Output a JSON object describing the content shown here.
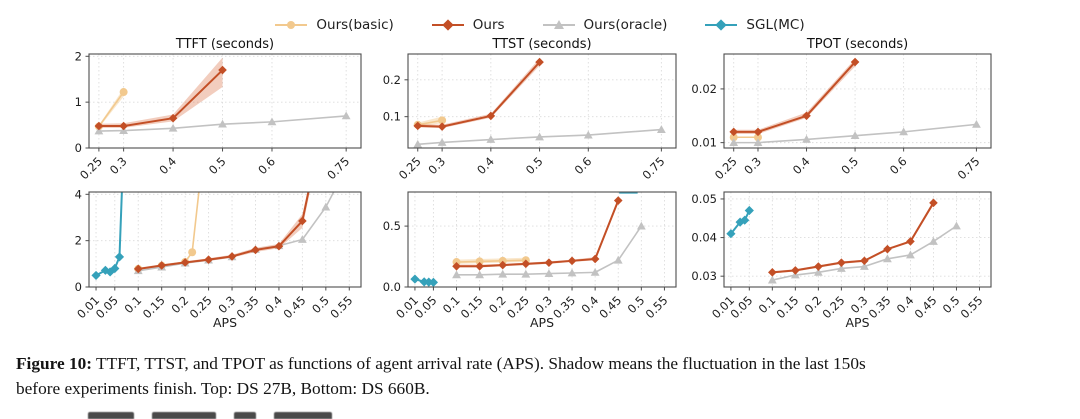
{
  "legend": {
    "items": [
      {
        "label": "Ours(basic)",
        "color": "#F2C98E",
        "marker": "circle"
      },
      {
        "label": "Ours",
        "color": "#C34F26",
        "marker": "diamond"
      },
      {
        "label": "Ours(oracle)",
        "color": "#C2C2C2",
        "marker": "triangle"
      },
      {
        "label": "SGL(MC)",
        "color": "#35A1BA",
        "marker": "diamond"
      }
    ]
  },
  "caption": {
    "tag": "Figure 10:",
    "line1": " TTFT, TTST, and TPOT as functions of agent arrival rate (APS). Shadow means the fluctuation in the last 150s",
    "line2": "before experiments finish. Top: DS 27B, Bottom: DS 660B."
  },
  "colors": {
    "basic": "#F2C98E",
    "ours": "#C34F26",
    "oracle": "#C2C2C2",
    "sgl": "#35A1BA",
    "ours_band": "#D96F45",
    "basic_band": "#F2C98E",
    "frame": "#4d4d4d",
    "grid": "#dcdcdc",
    "text": "#1f1f1f"
  },
  "chart_data": [
    {
      "type": "line",
      "title": "TTFT (seconds)",
      "model": "DS 27B",
      "grid": true,
      "xlim": [
        0.23,
        0.78
      ],
      "ylim": [
        0,
        2.05
      ],
      "xticks": [
        0.25,
        0.3,
        0.4,
        0.5,
        0.6,
        0.75
      ],
      "xtick_labels": [
        "0.25",
        "0.3",
        "0.4",
        "0.5",
        "0.6",
        "0.75"
      ],
      "yticks": [
        0,
        1,
        2
      ],
      "ytick_labels": [
        "0",
        "1",
        "2"
      ],
      "series": [
        {
          "name": "Ours(basic)",
          "key": "basic",
          "marker": "circle",
          "x": [
            0.25,
            0.3
          ],
          "y": [
            0.47,
            1.22
          ],
          "band_lo": [
            0.44,
            1.12
          ],
          "band_hi": [
            0.5,
            1.3
          ]
        },
        {
          "name": "Ours(oracle)",
          "key": "oracle",
          "marker": "triangle",
          "x": [
            0.25,
            0.3,
            0.4,
            0.5,
            0.6,
            0.75
          ],
          "y": [
            0.37,
            0.38,
            0.43,
            0.52,
            0.57,
            0.7
          ]
        },
        {
          "name": "Ours",
          "key": "ours",
          "marker": "diamond",
          "x": [
            0.25,
            0.3,
            0.4,
            0.5
          ],
          "y": [
            0.48,
            0.48,
            0.65,
            1.7
          ],
          "band_lo": [
            0.44,
            0.44,
            0.58,
            1.33
          ],
          "band_hi": [
            0.53,
            0.54,
            0.73,
            1.97
          ]
        }
      ]
    },
    {
      "type": "line",
      "title": "TTST (seconds)",
      "model": "DS 27B",
      "grid": true,
      "xlim": [
        0.23,
        0.78
      ],
      "ylim": [
        0.015,
        0.27
      ],
      "xticks": [
        0.25,
        0.3,
        0.4,
        0.5,
        0.6,
        0.75
      ],
      "xtick_labels": [
        "0.25",
        "0.3",
        "0.4",
        "0.5",
        "0.6",
        "0.75"
      ],
      "yticks": [
        0.1,
        0.2
      ],
      "ytick_labels": [
        "0.1",
        "0.2"
      ],
      "series": [
        {
          "name": "Ours(basic)",
          "key": "basic",
          "marker": "circle",
          "x": [
            0.25,
            0.3
          ],
          "y": [
            0.078,
            0.09
          ],
          "band_lo": [
            0.073,
            0.082
          ],
          "band_hi": [
            0.084,
            0.1
          ]
        },
        {
          "name": "Ours(oracle)",
          "key": "oracle",
          "marker": "triangle",
          "x": [
            0.25,
            0.3,
            0.4,
            0.5,
            0.6,
            0.75
          ],
          "y": [
            0.025,
            0.03,
            0.038,
            0.045,
            0.05,
            0.065
          ]
        },
        {
          "name": "Ours",
          "key": "ours",
          "marker": "diamond",
          "x": [
            0.25,
            0.3,
            0.4,
            0.5
          ],
          "y": [
            0.075,
            0.073,
            0.102,
            0.248
          ],
          "band_lo": [
            0.071,
            0.069,
            0.097,
            0.238
          ],
          "band_hi": [
            0.08,
            0.078,
            0.108,
            0.258
          ]
        }
      ]
    },
    {
      "type": "line",
      "title": "TPOT (seconds)",
      "model": "DS 27B",
      "grid": true,
      "xlim": [
        0.23,
        0.78
      ],
      "ylim": [
        0.009,
        0.0265
      ],
      "xticks": [
        0.25,
        0.3,
        0.4,
        0.5,
        0.6,
        0.75
      ],
      "xtick_labels": [
        "0.25",
        "0.3",
        "0.4",
        "0.5",
        "0.6",
        "0.75"
      ],
      "yticks": [
        0.01,
        0.02
      ],
      "ytick_labels": [
        "0.01",
        "0.02"
      ],
      "series": [
        {
          "name": "Ours(basic)",
          "key": "basic",
          "marker": "circle",
          "x": [
            0.25,
            0.3
          ],
          "y": [
            0.011,
            0.011
          ]
        },
        {
          "name": "Ours(oracle)",
          "key": "oracle",
          "marker": "triangle",
          "x": [
            0.25,
            0.3,
            0.4,
            0.5,
            0.6,
            0.75
          ],
          "y": [
            0.01,
            0.01,
            0.0106,
            0.0113,
            0.012,
            0.0134
          ]
        },
        {
          "name": "Ours",
          "key": "ours",
          "marker": "diamond",
          "x": [
            0.25,
            0.3,
            0.4,
            0.5
          ],
          "y": [
            0.012,
            0.012,
            0.015,
            0.025
          ],
          "band_lo": [
            0.0116,
            0.0116,
            0.0146,
            0.0242
          ],
          "band_hi": [
            0.0124,
            0.0124,
            0.0156,
            0.0256
          ]
        }
      ]
    },
    {
      "type": "line",
      "title": "",
      "model": "DS 660B",
      "xlabel": "APS",
      "grid": true,
      "xlim": [
        -0.005,
        0.575
      ],
      "ylim": [
        0,
        4.1
      ],
      "xticks": [
        0.01,
        0.05,
        0.1,
        0.15,
        0.2,
        0.25,
        0.3,
        0.35,
        0.4,
        0.45,
        0.5,
        0.55
      ],
      "xtick_labels": [
        "0.01",
        "0.05",
        "0.1",
        "0.15",
        "0.2",
        "0.25",
        "0.3",
        "0.35",
        "0.4",
        "0.45",
        "0.5",
        "0.55"
      ],
      "yticks": [
        0,
        2,
        4
      ],
      "ytick_labels": [
        "0",
        "2",
        "4"
      ],
      "series": [
        {
          "name": "SGL(MC)",
          "key": "sgl",
          "marker": "diamond",
          "x": [
            0.01,
            0.03,
            0.04,
            0.05,
            0.06,
            0.066
          ],
          "y": [
            0.5,
            0.72,
            0.65,
            0.8,
            1.3,
            4.6
          ]
        },
        {
          "name": "Ours(basic)",
          "key": "basic",
          "marker": "circle",
          "x": [
            0.1,
            0.15,
            0.2,
            0.215,
            0.232
          ],
          "y": [
            0.78,
            0.92,
            1.08,
            1.5,
            4.6
          ]
        },
        {
          "name": "Ours(oracle)",
          "key": "oracle",
          "marker": "triangle",
          "x": [
            0.1,
            0.15,
            0.2,
            0.25,
            0.3,
            0.35,
            0.4,
            0.45,
            0.5,
            0.527
          ],
          "y": [
            0.7,
            0.86,
            1.03,
            1.16,
            1.3,
            1.62,
            1.78,
            2.05,
            3.45,
            4.5
          ]
        },
        {
          "name": "Ours",
          "key": "ours",
          "marker": "diamond",
          "x": [
            0.1,
            0.15,
            0.2,
            0.25,
            0.3,
            0.35,
            0.4,
            0.45,
            0.468
          ],
          "y": [
            0.78,
            0.93,
            1.06,
            1.18,
            1.32,
            1.6,
            1.76,
            2.85,
            4.6
          ],
          "band_lo": [
            0.74,
            0.89,
            1.01,
            1.12,
            1.26,
            1.51,
            1.67,
            2.55,
            4.3
          ],
          "band_hi": [
            0.83,
            0.98,
            1.11,
            1.24,
            1.39,
            1.69,
            1.86,
            3.15,
            4.8
          ]
        }
      ]
    },
    {
      "type": "line",
      "title": "",
      "model": "DS 660B",
      "xlabel": "APS",
      "grid": true,
      "xlim": [
        -0.005,
        0.575
      ],
      "ylim": [
        0,
        0.78
      ],
      "xticks": [
        0.01,
        0.05,
        0.1,
        0.15,
        0.2,
        0.25,
        0.3,
        0.35,
        0.4,
        0.45,
        0.5,
        0.55
      ],
      "xtick_labels": [
        "0.01",
        "0.05",
        "0.1",
        "0.15",
        "0.2",
        "0.25",
        "0.3",
        "0.35",
        "0.4",
        "0.45",
        "0.5",
        "0.55"
      ],
      "yticks": [
        0.0,
        0.5
      ],
      "ytick_labels": [
        "0.0",
        "0.5"
      ],
      "series": [
        {
          "name": "SGL(MC)",
          "key": "sgl",
          "marker": "diamond",
          "x": [
            0.01,
            0.03,
            0.04,
            0.05
          ],
          "y": [
            0.065,
            0.042,
            0.04,
            0.038
          ]
        },
        {
          "name": "SGL(MC) off-scale",
          "key": "sgl",
          "marker": "none",
          "x": [
            0.452,
            0.492
          ],
          "y": [
            0.775,
            0.775
          ]
        },
        {
          "name": "Ours(basic)",
          "key": "basic",
          "marker": "circle",
          "x": [
            0.1,
            0.15,
            0.2,
            0.25
          ],
          "y": [
            0.205,
            0.21,
            0.215,
            0.22
          ],
          "band_lo": [
            0.19,
            0.195,
            0.2,
            0.205
          ],
          "band_hi": [
            0.225,
            0.23,
            0.235,
            0.24
          ]
        },
        {
          "name": "Ours(oracle)",
          "key": "oracle",
          "marker": "triangle",
          "x": [
            0.1,
            0.15,
            0.2,
            0.25,
            0.3,
            0.35,
            0.4,
            0.45,
            0.5
          ],
          "y": [
            0.1,
            0.1,
            0.105,
            0.105,
            0.11,
            0.115,
            0.12,
            0.22,
            0.5
          ]
        },
        {
          "name": "Ours",
          "key": "ours",
          "marker": "diamond",
          "x": [
            0.1,
            0.15,
            0.2,
            0.25,
            0.3,
            0.35,
            0.4,
            0.45
          ],
          "y": [
            0.17,
            0.17,
            0.18,
            0.19,
            0.2,
            0.215,
            0.23,
            0.71
          ],
          "band_lo": [
            0.16,
            0.16,
            0.17,
            0.18,
            0.19,
            0.205,
            0.22,
            0.69
          ],
          "band_hi": [
            0.185,
            0.185,
            0.19,
            0.2,
            0.21,
            0.225,
            0.245,
            0.73
          ]
        }
      ]
    },
    {
      "type": "line",
      "title": "",
      "model": "DS 660B",
      "xlabel": "APS",
      "grid": true,
      "xlim": [
        -0.005,
        0.575
      ],
      "ylim": [
        0.0272,
        0.0518
      ],
      "xticks": [
        0.01,
        0.05,
        0.1,
        0.15,
        0.2,
        0.25,
        0.3,
        0.35,
        0.4,
        0.45,
        0.5,
        0.55
      ],
      "xtick_labels": [
        "0.01",
        "0.05",
        "0.1",
        "0.15",
        "0.2",
        "0.25",
        "0.3",
        "0.35",
        "0.4",
        "0.45",
        "0.5",
        "0.55"
      ],
      "yticks": [
        0.03,
        0.04,
        0.05
      ],
      "ytick_labels": [
        "0.03",
        "0.04",
        "0.05"
      ],
      "series": [
        {
          "name": "SGL(MC)",
          "key": "sgl",
          "marker": "diamond",
          "x": [
            0.01,
            0.03,
            0.04,
            0.05
          ],
          "y": [
            0.041,
            0.044,
            0.0445,
            0.047
          ]
        },
        {
          "name": "Ours(oracle)",
          "key": "oracle",
          "marker": "triangle",
          "x": [
            0.1,
            0.15,
            0.2,
            0.25,
            0.3,
            0.35,
            0.4,
            0.45,
            0.5
          ],
          "y": [
            0.029,
            0.0303,
            0.031,
            0.032,
            0.0325,
            0.0345,
            0.0355,
            0.039,
            0.043
          ]
        },
        {
          "name": "Ours",
          "key": "ours",
          "marker": "diamond",
          "x": [
            0.1,
            0.15,
            0.2,
            0.25,
            0.3,
            0.35,
            0.4,
            0.45
          ],
          "y": [
            0.031,
            0.0315,
            0.0325,
            0.0335,
            0.034,
            0.037,
            0.039,
            0.049
          ],
          "band_lo": [
            0.0307,
            0.0312,
            0.0322,
            0.0332,
            0.0337,
            0.0367,
            0.0387,
            0.0484
          ],
          "band_hi": [
            0.0313,
            0.0318,
            0.0328,
            0.0338,
            0.0343,
            0.0373,
            0.0393,
            0.0496
          ]
        }
      ]
    }
  ]
}
